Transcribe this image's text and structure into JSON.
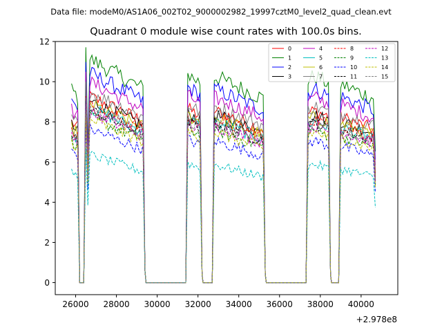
{
  "chart_data": {
    "type": "line",
    "suptitle": "Data file: modeM0/AS1A06_002T02_9000002982_19997cztM0_level2_quad_clean.evt",
    "title": "Quadrant 0 module wise count rates with 100.0s bins.",
    "xlabel": "",
    "ylabel": "",
    "x_offset_label": "+2.978e8",
    "xlim": [
      25000,
      41800
    ],
    "ylim": [
      -0.6,
      12.0
    ],
    "x_ticks": [
      26000,
      28000,
      30000,
      32000,
      34000,
      36000,
      38000,
      40000
    ],
    "x_tick_labels": [
      "26000",
      "28000",
      "30000",
      "32000",
      "34000",
      "36000",
      "38000",
      "40000"
    ],
    "y_ticks": [
      0,
      2,
      4,
      6,
      8,
      10,
      12
    ],
    "y_tick_labels": [
      "0",
      "2",
      "4",
      "6",
      "8",
      "10",
      "12"
    ],
    "bin_size": 100,
    "segments": [
      {
        "start": 25800,
        "end": 26200,
        "gap_end": 26400
      },
      {
        "start": 26500,
        "end": 29400,
        "gap_end": 31400
      },
      {
        "start": 31500,
        "end": 32200,
        "gap_end": 32700
      },
      {
        "start": 32800,
        "end": 35300,
        "gap_end": 37300
      },
      {
        "start": 37400,
        "end": 38500,
        "gap_end": 38900
      },
      {
        "start": 39000,
        "end": 40700,
        "gap_end": null
      }
    ],
    "legend_position": "top-right",
    "series": [
      {
        "name": "0",
        "color": "#ff0000",
        "dash": "solid",
        "level": 8.0
      },
      {
        "name": "1",
        "color": "#008000",
        "dash": "solid",
        "level": 9.6
      },
      {
        "name": "2",
        "color": "#0000ff",
        "dash": "solid",
        "level": 9.0
      },
      {
        "name": "3",
        "color": "#000000",
        "dash": "solid",
        "level": 7.8
      },
      {
        "name": "4",
        "color": "#bf00bf",
        "dash": "solid",
        "level": 8.6
      },
      {
        "name": "5",
        "color": "#00bfbf",
        "dash": "solid",
        "level": 7.5
      },
      {
        "name": "6",
        "color": "#bfbf00",
        "dash": "solid",
        "level": 7.7
      },
      {
        "name": "7",
        "color": "#808080",
        "dash": "solid",
        "level": 8.2
      },
      {
        "name": "8",
        "color": "#ff0000",
        "dash": "dashed",
        "level": 7.6
      },
      {
        "name": "9",
        "color": "#008000",
        "dash": "dashed",
        "level": 7.1
      },
      {
        "name": "10",
        "color": "#0000ff",
        "dash": "dashed",
        "level": 6.6
      },
      {
        "name": "11",
        "color": "#000000",
        "dash": "dashed",
        "level": 7.4
      },
      {
        "name": "12",
        "color": "#bf00bf",
        "dash": "dashed",
        "level": 7.3
      },
      {
        "name": "13",
        "color": "#00bfbf",
        "dash": "dashed",
        "level": 5.5
      },
      {
        "name": "14",
        "color": "#bfbf00",
        "dash": "dashed",
        "level": 7.0
      },
      {
        "name": "15",
        "color": "#808080",
        "dash": "dashed",
        "level": 7.5
      }
    ]
  }
}
